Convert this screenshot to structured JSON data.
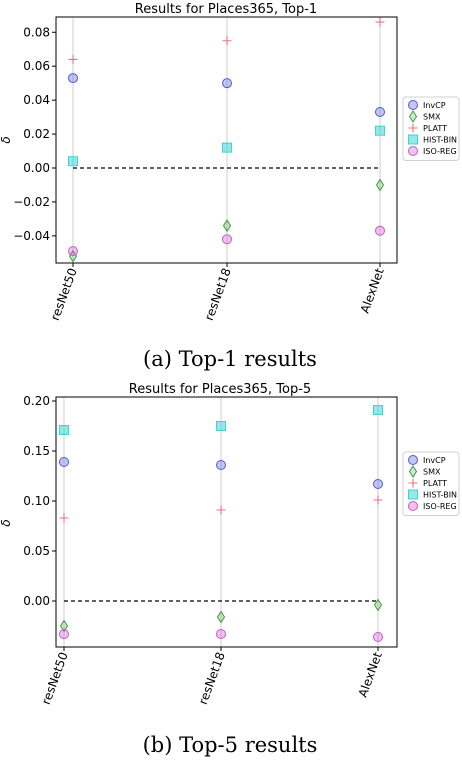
{
  "chart_data": [
    {
      "type": "scatter",
      "title": "Results for Places365, Top-1",
      "ylabel": "δ",
      "categories": [
        "resNet50",
        "resNet18",
        "AlexNet"
      ],
      "ylim": [
        -0.056,
        0.089
      ],
      "yticks": [
        -0.04,
        -0.02,
        0.0,
        0.02,
        0.04,
        0.06,
        0.08
      ],
      "ytick_labels": [
        "−0.04",
        "−0.02",
        "0.00",
        "0.02",
        "0.04",
        "0.06",
        "0.08"
      ],
      "reference_line": 0.0,
      "grid": "vertical",
      "legend_position": "right",
      "series": [
        {
          "name": "InvCP",
          "color": "#4f5bd5",
          "marker": "circle",
          "values": [
            0.053,
            0.05,
            0.033
          ]
        },
        {
          "name": "SMX",
          "color": "#3f9a3f",
          "marker": "diamond",
          "values": [
            -0.052,
            -0.034,
            -0.01
          ]
        },
        {
          "name": "PLATT",
          "color": "#e8747c",
          "marker": "plus",
          "values": [
            0.064,
            0.075,
            0.086
          ]
        },
        {
          "name": "HIST-BIN",
          "color": "#3fd3d3",
          "marker": "square",
          "values": [
            0.004,
            0.012,
            0.022
          ]
        },
        {
          "name": "ISO-REG",
          "color": "#cc55cc",
          "marker": "circle",
          "values": [
            -0.049,
            -0.042,
            -0.037
          ]
        }
      ],
      "caption": "(a) Top-1 results"
    },
    {
      "type": "scatter",
      "title": "Results for Places365, Top-5",
      "ylabel": "δ",
      "categories": [
        "resNet50",
        "resNet18",
        "AlexNet"
      ],
      "ylim": [
        -0.046,
        0.204
      ],
      "yticks": [
        0.0,
        0.05,
        0.1,
        0.15,
        0.2
      ],
      "ytick_labels": [
        "0.00",
        "0.05",
        "0.10",
        "0.15",
        "0.20"
      ],
      "reference_line": 0.0,
      "grid": "vertical",
      "legend_position": "right",
      "series": [
        {
          "name": "InvCP",
          "color": "#4f5bd5",
          "marker": "circle",
          "values": [
            0.139,
            0.136,
            0.117
          ]
        },
        {
          "name": "SMX",
          "color": "#3f9a3f",
          "marker": "diamond",
          "values": [
            -0.025,
            -0.016,
            -0.004
          ]
        },
        {
          "name": "PLATT",
          "color": "#e8747c",
          "marker": "plus",
          "values": [
            0.083,
            0.091,
            0.101
          ]
        },
        {
          "name": "HIST-BIN",
          "color": "#3fd3d3",
          "marker": "square",
          "values": [
            0.171,
            0.175,
            0.191
          ]
        },
        {
          "name": "ISO-REG",
          "color": "#cc55cc",
          "marker": "circle",
          "values": [
            -0.033,
            -0.033,
            -0.036
          ]
        }
      ],
      "caption": "(b) Top-5 results"
    }
  ]
}
